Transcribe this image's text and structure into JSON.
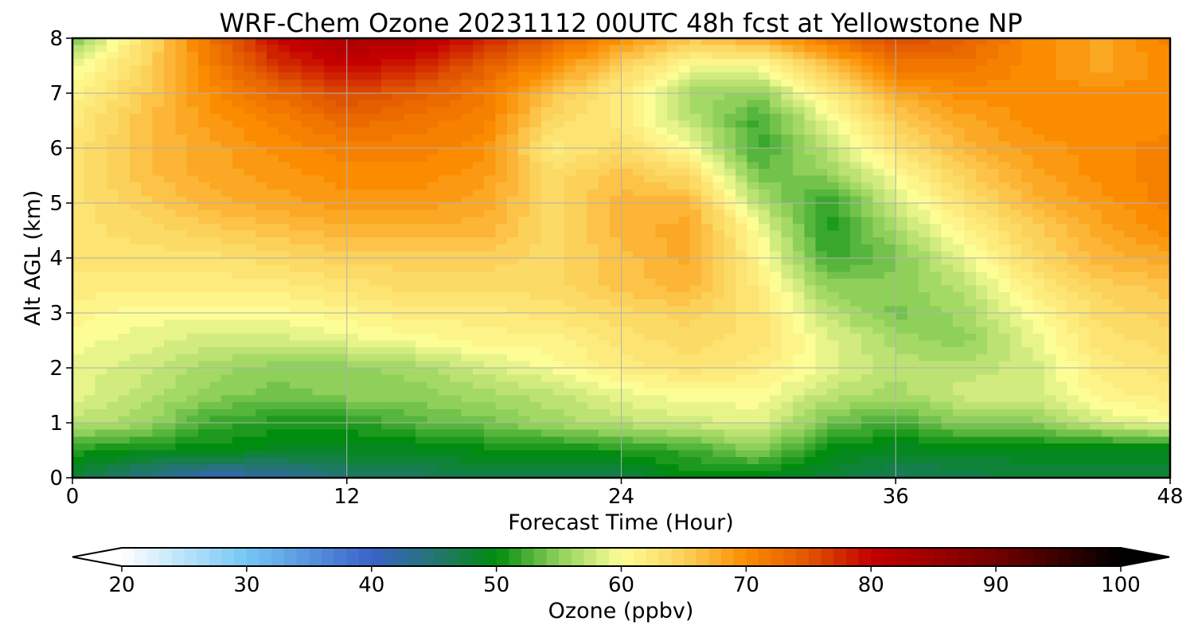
{
  "chart_data": {
    "type": "heatmap",
    "title": "WRF-Chem Ozone  20231112 00UTC 48h fcst at Yellowstone NP",
    "xlabel": "Forecast Time (Hour)",
    "ylabel": "Alt AGL (km)",
    "xlim": [
      0,
      48
    ],
    "ylim": [
      0,
      8
    ],
    "x_ticks": [
      0,
      12,
      24,
      36,
      48
    ],
    "y_ticks": [
      0,
      1,
      2,
      3,
      4,
      5,
      6,
      7,
      8
    ],
    "grid": true,
    "x": [
      0,
      3,
      6,
      9,
      12,
      15,
      18,
      21,
      24,
      27,
      30,
      33,
      36,
      39,
      42,
      45,
      48
    ],
    "y": [
      0,
      0.5,
      1,
      1.5,
      2,
      2.5,
      3,
      3.5,
      4,
      4.5,
      5,
      5.5,
      6,
      6.5,
      7,
      7.5,
      8
    ],
    "values": [
      [
        48,
        44,
        41,
        42,
        45,
        46,
        47,
        47,
        47,
        50,
        49,
        48,
        46,
        47,
        48,
        48,
        48
      ],
      [
        51,
        50,
        50,
        49,
        49,
        49,
        50,
        50,
        51,
        52,
        55,
        50,
        49,
        49,
        49,
        49,
        49
      ],
      [
        57,
        56,
        52,
        51,
        51,
        53,
        54,
        56,
        57,
        58,
        59,
        54,
        52,
        55,
        55,
        58,
        60
      ],
      [
        59,
        57,
        55,
        54,
        55,
        55,
        56,
        57,
        59,
        60,
        60,
        57,
        56,
        58,
        58,
        61,
        62
      ],
      [
        59,
        58,
        56,
        55,
        55,
        56,
        58,
        60,
        62,
        63,
        62,
        59,
        57,
        57,
        58,
        62,
        63
      ],
      [
        60,
        59,
        58,
        58,
        59,
        60,
        61,
        61,
        63,
        64,
        63,
        59,
        56,
        55,
        59,
        63,
        64
      ],
      [
        61,
        60,
        60,
        60,
        61,
        62,
        62,
        63,
        64,
        65,
        63,
        57,
        54,
        56,
        60,
        64,
        65
      ],
      [
        62,
        62,
        62,
        62,
        63,
        64,
        64,
        64,
        66,
        67,
        62,
        55,
        55,
        57,
        62,
        65,
        66
      ],
      [
        63,
        63,
        63,
        64,
        65,
        65,
        65,
        64,
        66,
        68,
        61,
        52,
        54,
        59,
        64,
        67,
        68
      ],
      [
        63,
        64,
        65,
        66,
        67,
        67,
        67,
        64,
        67,
        68,
        60,
        51,
        56,
        61,
        65,
        68,
        70
      ],
      [
        63,
        65,
        67,
        68,
        69,
        69,
        68,
        64,
        67,
        67,
        57,
        51,
        58,
        63,
        67,
        69,
        71
      ],
      [
        63,
        66,
        68,
        69,
        70,
        70,
        69,
        64,
        66,
        64,
        54,
        55,
        60,
        65,
        68,
        70,
        71
      ],
      [
        63,
        66,
        68,
        70,
        71,
        71,
        70,
        62,
        64,
        60,
        52,
        57,
        63,
        67,
        69,
        70,
        71
      ],
      [
        62,
        66,
        69,
        71,
        73,
        72,
        71,
        64,
        62,
        57,
        52,
        59,
        65,
        68,
        70,
        70,
        70
      ],
      [
        61,
        65,
        70,
        73,
        76,
        74,
        72,
        66,
        62,
        56,
        55,
        62,
        68,
        70,
        70,
        70,
        70
      ],
      [
        59,
        64,
        71,
        77,
        80,
        78,
        74,
        70,
        65,
        60,
        60,
        66,
        72,
        72,
        70,
        68,
        70
      ],
      [
        54,
        63,
        72,
        80,
        83,
        82,
        78,
        74,
        70,
        66,
        68,
        72,
        76,
        74,
        70,
        68,
        71
      ]
    ],
    "colorbar": {
      "label": "Ozone  (ppbv)",
      "min": 20,
      "max": 100,
      "ticks": [
        20,
        30,
        40,
        50,
        60,
        70,
        80,
        90,
        100
      ],
      "extend": "both",
      "stops": [
        {
          "value": 20,
          "color": "#ffffff"
        },
        {
          "value": 30,
          "color": "#74c6f4"
        },
        {
          "value": 40,
          "color": "#3a62c9"
        },
        {
          "value": 45,
          "color": "#237572"
        },
        {
          "value": 50,
          "color": "#008c0e"
        },
        {
          "value": 55,
          "color": "#8fd05a"
        },
        {
          "value": 60,
          "color": "#fdfd96"
        },
        {
          "value": 65,
          "color": "#fcd15a"
        },
        {
          "value": 70,
          "color": "#fb8c00"
        },
        {
          "value": 75,
          "color": "#e05400"
        },
        {
          "value": 80,
          "color": "#c40000"
        },
        {
          "value": 90,
          "color": "#730000"
        },
        {
          "value": 100,
          "color": "#000000"
        }
      ]
    }
  }
}
